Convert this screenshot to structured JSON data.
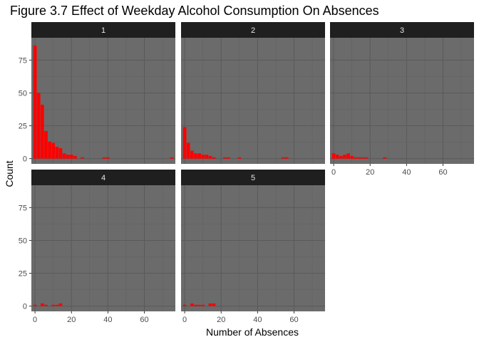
{
  "chart_data": {
    "type": "bar",
    "title": "Figure 3.7 Effect of Weekday Alcohol Consumption On Absences",
    "xlabel": "Number of Absences",
    "ylabel": "Count",
    "xlim": [
      -2,
      77
    ],
    "ylim": [
      -4,
      92
    ],
    "x_ticks": [
      0,
      20,
      40,
      60
    ],
    "y_ticks": [
      0,
      25,
      50,
      75
    ],
    "facet_layout": "3 columns x 2 rows, shared axes",
    "panel_color": "#6b6b6b",
    "strip_color": "#1f1f1f",
    "bar_color": "#ff0000",
    "panels": [
      {
        "label": "1",
        "bars": [
          {
            "x": 0,
            "y": 86
          },
          {
            "x": 2,
            "y": 50
          },
          {
            "x": 4,
            "y": 41
          },
          {
            "x": 6,
            "y": 21
          },
          {
            "x": 8,
            "y": 13
          },
          {
            "x": 10,
            "y": 12
          },
          {
            "x": 12,
            "y": 9
          },
          {
            "x": 14,
            "y": 8
          },
          {
            "x": 16,
            "y": 4
          },
          {
            "x": 18,
            "y": 3
          },
          {
            "x": 20,
            "y": 3
          },
          {
            "x": 22,
            "y": 2
          },
          {
            "x": 26,
            "y": 1
          },
          {
            "x": 38,
            "y": 1
          },
          {
            "x": 40,
            "y": 1
          },
          {
            "x": 75,
            "y": 1
          }
        ]
      },
      {
        "label": "2",
        "bars": [
          {
            "x": 0,
            "y": 24
          },
          {
            "x": 2,
            "y": 12
          },
          {
            "x": 4,
            "y": 6
          },
          {
            "x": 6,
            "y": 4
          },
          {
            "x": 8,
            "y": 4
          },
          {
            "x": 10,
            "y": 3
          },
          {
            "x": 12,
            "y": 3
          },
          {
            "x": 14,
            "y": 2
          },
          {
            "x": 16,
            "y": 1
          },
          {
            "x": 22,
            "y": 1
          },
          {
            "x": 24,
            "y": 1
          },
          {
            "x": 30,
            "y": 1
          },
          {
            "x": 54,
            "y": 1
          },
          {
            "x": 56,
            "y": 1
          }
        ]
      },
      {
        "label": "3",
        "bars": [
          {
            "x": 0,
            "y": 4
          },
          {
            "x": 2,
            "y": 3
          },
          {
            "x": 4,
            "y": 2
          },
          {
            "x": 6,
            "y": 3
          },
          {
            "x": 8,
            "y": 4
          },
          {
            "x": 10,
            "y": 2
          },
          {
            "x": 12,
            "y": 1
          },
          {
            "x": 14,
            "y": 1
          },
          {
            "x": 16,
            "y": 1
          },
          {
            "x": 18,
            "y": 1
          },
          {
            "x": 28,
            "y": 1
          }
        ]
      },
      {
        "label": "4",
        "bars": [
          {
            "x": 0,
            "y": 1
          },
          {
            "x": 4,
            "y": 2
          },
          {
            "x": 6,
            "y": 1
          },
          {
            "x": 10,
            "y": 1
          },
          {
            "x": 12,
            "y": 1
          },
          {
            "x": 14,
            "y": 2
          }
        ]
      },
      {
        "label": "5",
        "bars": [
          {
            "x": 0,
            "y": 1
          },
          {
            "x": 4,
            "y": 2
          },
          {
            "x": 6,
            "y": 1
          },
          {
            "x": 8,
            "y": 1
          },
          {
            "x": 10,
            "y": 1
          },
          {
            "x": 14,
            "y": 2
          },
          {
            "x": 16,
            "y": 2
          }
        ]
      }
    ]
  }
}
